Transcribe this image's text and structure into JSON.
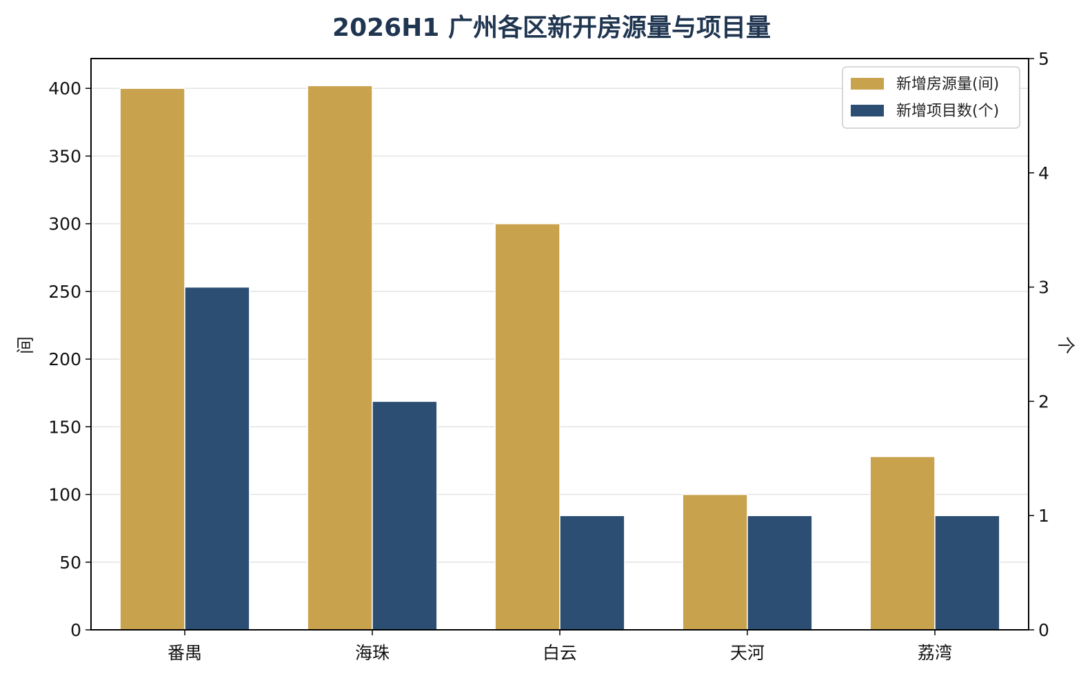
{
  "chart_data": {
    "type": "bar",
    "title": "2026H1 广州各区新开房源量与项目量",
    "categories": [
      "番禺",
      "海珠",
      "白云",
      "天河",
      "荔湾"
    ],
    "series": [
      {
        "name": "新增房源量(间)",
        "axis": "left",
        "color": "#c9a24d",
        "values": [
          400,
          402,
          300,
          100,
          128
        ]
      },
      {
        "name": "新增项目数(个)",
        "axis": "right",
        "color": "#2b4e72",
        "values": [
          3,
          2,
          1,
          1,
          1
        ]
      }
    ],
    "ylabel": "间",
    "y2label": "个",
    "ylim": [
      0,
      422
    ],
    "y2lim": [
      0,
      5
    ],
    "yticks": [
      0,
      50,
      100,
      150,
      200,
      250,
      300,
      350,
      400
    ],
    "y2ticks": [
      0,
      1,
      2,
      3,
      4,
      5
    ],
    "grid": true,
    "legend_position": "top-right"
  }
}
